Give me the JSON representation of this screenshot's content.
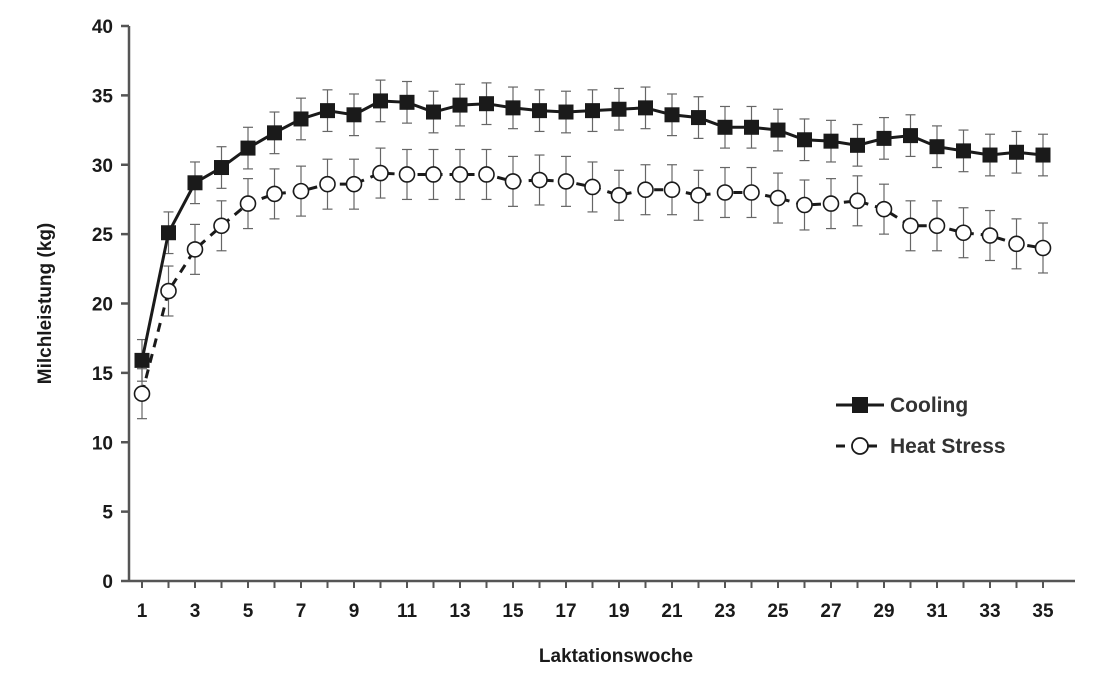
{
  "chart_data": {
    "type": "line",
    "xlabel": "Laktationswoche",
    "ylabel": "Milchleistung (kg)",
    "xlim": [
      1,
      35
    ],
    "ylim": [
      0,
      40
    ],
    "x_ticks": [
      "1",
      "3",
      "5",
      "7",
      "9",
      "11",
      "13",
      "15",
      "17",
      "19",
      "21",
      "23",
      "25",
      "27",
      "29",
      "31",
      "33",
      "35"
    ],
    "y_ticks": [
      "0",
      "5",
      "10",
      "15",
      "20",
      "25",
      "30",
      "35",
      "40"
    ],
    "grid": false,
    "legend_position": "center-right",
    "x": [
      1,
      2,
      3,
      4,
      5,
      6,
      7,
      8,
      9,
      10,
      11,
      12,
      13,
      14,
      15,
      16,
      17,
      18,
      19,
      20,
      21,
      22,
      23,
      24,
      25,
      26,
      27,
      28,
      29,
      30,
      31,
      32,
      33,
      34,
      35
    ],
    "series": [
      {
        "name": "Cooling",
        "marker": "filled-square",
        "line": "solid",
        "color": "#1a1a1a",
        "values": [
          15.9,
          25.1,
          28.7,
          29.8,
          31.2,
          32.3,
          33.3,
          33.9,
          33.6,
          34.6,
          34.5,
          33.8,
          34.3,
          34.4,
          34.1,
          33.9,
          33.8,
          33.9,
          34.0,
          34.1,
          33.6,
          33.4,
          32.7,
          32.7,
          32.5,
          31.8,
          31.7,
          31.4,
          31.9,
          32.1,
          31.3,
          31.0,
          30.7,
          30.9,
          30.7
        ],
        "error": 1.5
      },
      {
        "name": "Heat Stress",
        "marker": "open-circle",
        "line": "dashed",
        "color": "#1a1a1a",
        "values": [
          13.5,
          20.9,
          23.9,
          25.6,
          27.2,
          27.9,
          28.1,
          28.6,
          28.6,
          29.4,
          29.3,
          29.3,
          29.3,
          29.3,
          28.8,
          28.9,
          28.8,
          28.4,
          27.8,
          28.2,
          28.2,
          27.8,
          28.0,
          28.0,
          27.6,
          27.1,
          27.2,
          27.4,
          26.8,
          25.6,
          25.6,
          25.1,
          24.9,
          24.3,
          24.0
        ],
        "error": 1.8
      }
    ]
  }
}
